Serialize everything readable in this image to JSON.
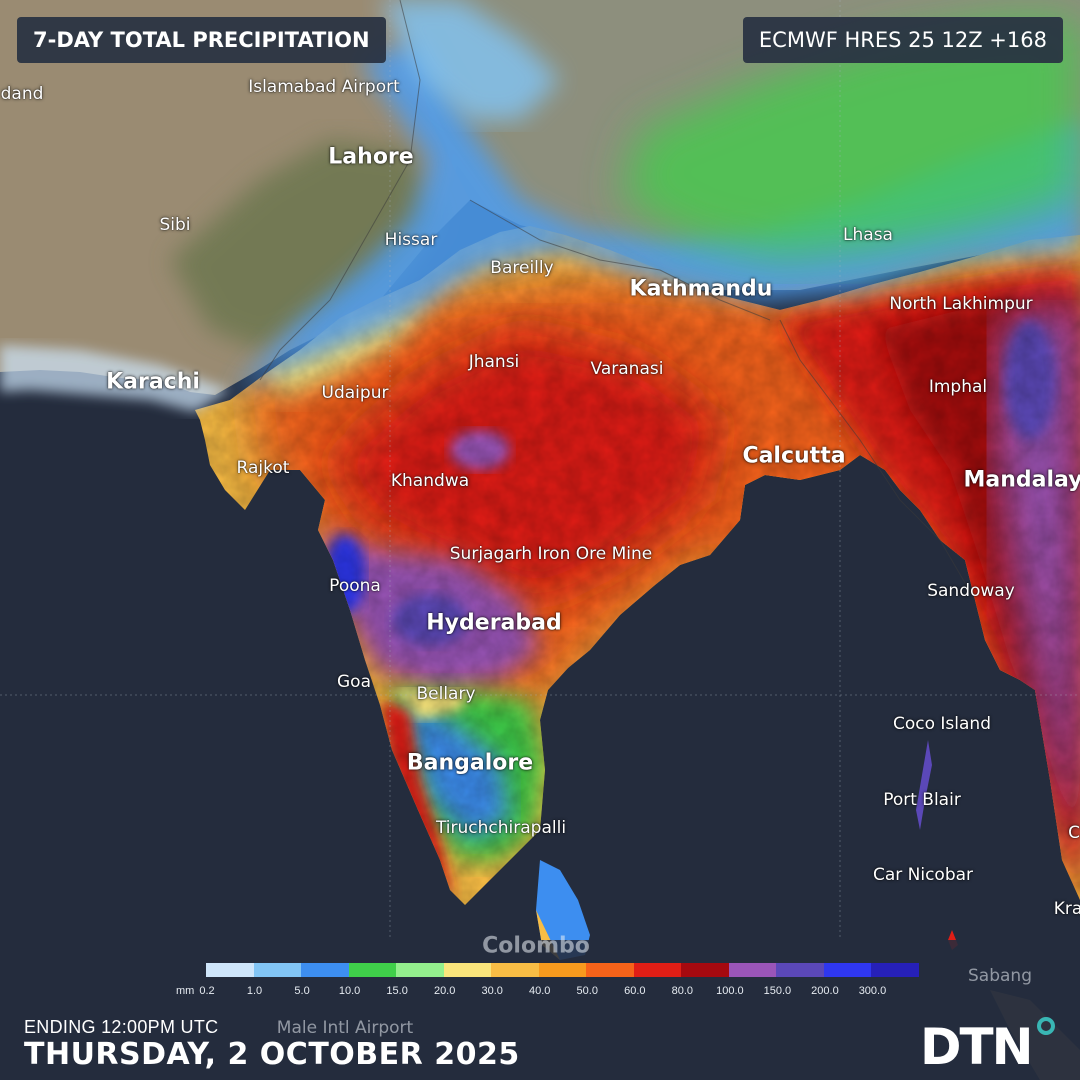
{
  "header": {
    "title": "7-DAY TOTAL PRECIPITATION",
    "model_run": "ECMWF HRES 25 12Z +168"
  },
  "map": {
    "places": [
      {
        "id": "karachi",
        "name": "Karachi",
        "major": true
      },
      {
        "id": "lahore",
        "name": "Lahore",
        "major": true
      },
      {
        "id": "islamabad",
        "name": "Islamabad Airport",
        "major": false
      },
      {
        "id": "dand",
        "name": "dand",
        "major": false
      },
      {
        "id": "sibi",
        "name": "Sibi",
        "major": false
      },
      {
        "id": "hissar",
        "name": "Hissar",
        "major": false
      },
      {
        "id": "bareilly",
        "name": "Bareilly",
        "major": false
      },
      {
        "id": "lhasa",
        "name": "Lhasa",
        "major": false
      },
      {
        "id": "kathmandu",
        "name": "Kathmandu",
        "major": true
      },
      {
        "id": "north-lakhimpur",
        "name": "North Lakhimpur",
        "major": false
      },
      {
        "id": "jhansi",
        "name": "Jhansi",
        "major": false
      },
      {
        "id": "varanasi",
        "name": "Varanasi",
        "major": false
      },
      {
        "id": "udaipur",
        "name": "Udaipur",
        "major": false
      },
      {
        "id": "imphal",
        "name": "Imphal",
        "major": false
      },
      {
        "id": "rajkot",
        "name": "Rajkot",
        "major": false
      },
      {
        "id": "calcutta",
        "name": "Calcutta",
        "major": true
      },
      {
        "id": "khandwa",
        "name": "Khandwa",
        "major": false
      },
      {
        "id": "mandalay",
        "name": "Mandalay",
        "major": true
      },
      {
        "id": "surjagarh",
        "name": "Surjagarh Iron Ore Mine",
        "major": false
      },
      {
        "id": "poona",
        "name": "Poona",
        "major": false
      },
      {
        "id": "sandoway",
        "name": "Sandoway",
        "major": false
      },
      {
        "id": "hyderabad",
        "name": "Hyderabad",
        "major": true
      },
      {
        "id": "goa",
        "name": "Goa",
        "major": false
      },
      {
        "id": "bellary",
        "name": "Bellary",
        "major": false
      },
      {
        "id": "coco-island",
        "name": "Coco Island",
        "major": false
      },
      {
        "id": "bangalore",
        "name": "Bangalore",
        "major": true
      },
      {
        "id": "port-blair",
        "name": "Port Blair",
        "major": false
      },
      {
        "id": "tiruchchirapalli",
        "name": "Tiruchchirapalli",
        "major": false
      },
      {
        "id": "car-nicobar",
        "name": "Car Nicobar",
        "major": false
      },
      {
        "id": "kra",
        "name": "Kra",
        "major": false
      },
      {
        "id": "c-edge",
        "name": "C",
        "major": false
      },
      {
        "id": "colombo",
        "name": "Colombo",
        "major": true
      },
      {
        "id": "sabang",
        "name": "Sabang",
        "major": false
      },
      {
        "id": "male",
        "name": "Male Intl Airport",
        "major": false
      }
    ]
  },
  "legend": {
    "unit": "mm",
    "ticks": [
      "0.2",
      "1.0",
      "5.0",
      "10.0",
      "15.0",
      "20.0",
      "30.0",
      "40.0",
      "50.0",
      "60.0",
      "80.0",
      "100.0",
      "150.0",
      "200.0",
      "300.0"
    ],
    "colors": [
      "#cfe6fb",
      "#82c5f5",
      "#3d8ef0",
      "#3fcf4a",
      "#93ef8d",
      "#f9e57c",
      "#f8bd45",
      "#f79a1e",
      "#f6631a",
      "#e01e16",
      "#a5090f",
      "#9a55b8",
      "#5b48b8",
      "#2f37f0",
      "#2620b8"
    ]
  },
  "footer": {
    "ending_label": "ENDING 12:00PM UTC",
    "date": "THURSDAY, 2 OCTOBER 2025"
  },
  "brand": {
    "logo_text": "DTN",
    "logo_accent": "#39b6b4"
  },
  "colors": {
    "ocean": "#242c3d",
    "land_dry": "#9b8c72",
    "land_green": "#6f7a4c"
  }
}
